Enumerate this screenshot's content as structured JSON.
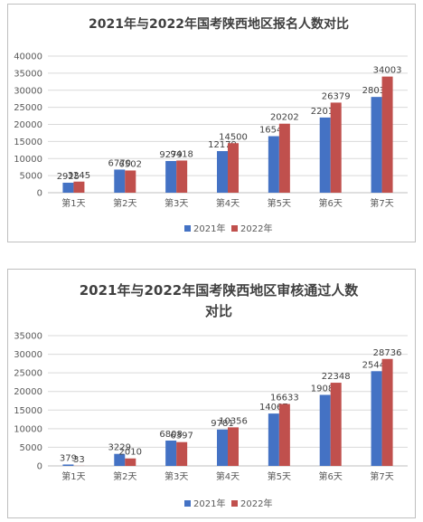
{
  "chart_data": [
    {
      "type": "bar",
      "title": "2021年与2022年国考陕西地区报名人数对比",
      "categories": [
        "第1天",
        "第2天",
        "第3天",
        "第4天",
        "第5天",
        "第6天",
        "第7天"
      ],
      "series": [
        {
          "name": "2021年",
          "color": "#4472c4",
          "values": [
            2925,
            6770,
            9279,
            12179,
            16549,
            22016,
            28038
          ]
        },
        {
          "name": "2022年",
          "color": "#c0504d",
          "values": [
            3245,
            6502,
            9418,
            14500,
            20202,
            26379,
            34003
          ]
        }
      ],
      "yticks": [
        "0",
        "5000",
        "10000",
        "15000",
        "20000",
        "25000",
        "30000",
        "35000",
        "40000"
      ],
      "ylim": [
        0,
        40000
      ],
      "grid": true,
      "legend": "bottom"
    },
    {
      "type": "bar",
      "title_lines": [
        "2021年与2022年国考陕西地区审核通过人数",
        "对比"
      ],
      "categories": [
        "第1天",
        "第2天",
        "第3天",
        "第4天",
        "第5天",
        "第6天",
        "第7天"
      ],
      "series": [
        {
          "name": "2021年",
          "color": "#4472c4",
          "values": [
            379,
            3229,
            6808,
            9781,
            14067,
            19084,
            25447
          ]
        },
        {
          "name": "2022年",
          "color": "#c0504d",
          "values": [
            33,
            2010,
            6397,
            10356,
            16633,
            22348,
            28736
          ]
        }
      ],
      "yticks": [
        "0",
        "5000",
        "10000",
        "15000",
        "20000",
        "25000",
        "30000",
        "35000"
      ],
      "ylim": [
        0,
        35000
      ],
      "grid": true,
      "legend": "bottom"
    }
  ]
}
